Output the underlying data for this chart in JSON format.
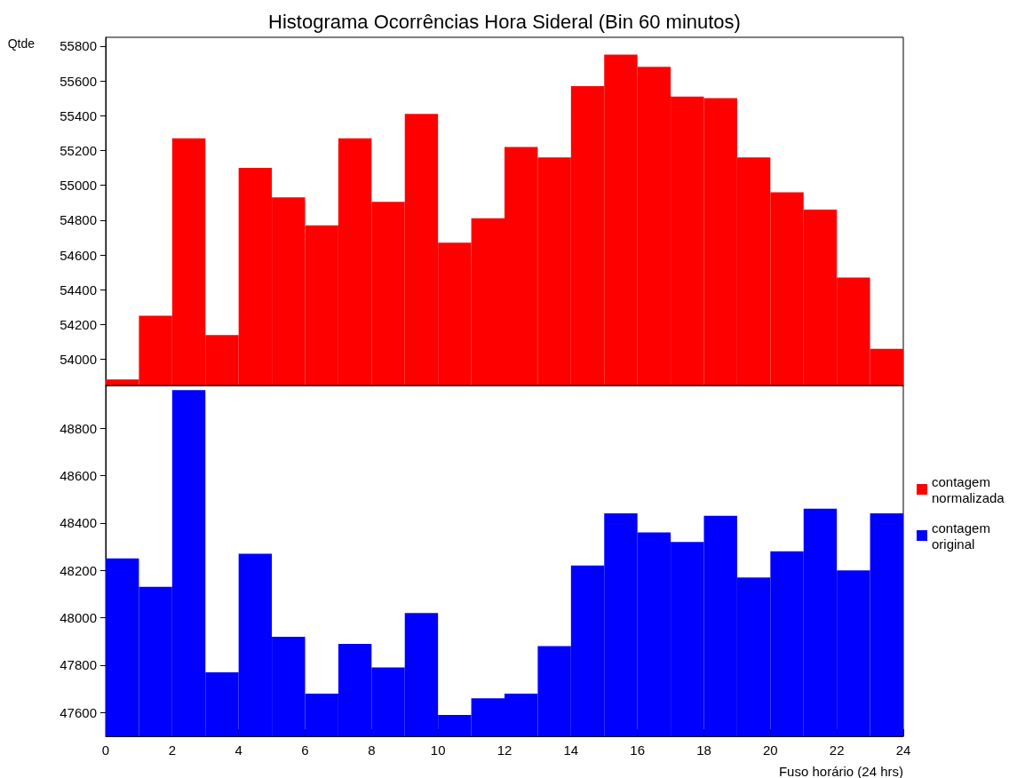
{
  "chart_data": [
    {
      "type": "histogram",
      "title": "Histograma Ocorrências Hora Sideral (Bin 60 minutos)",
      "ylabel": "Qtde",
      "bins": [
        0,
        1,
        2,
        3,
        4,
        5,
        6,
        7,
        8,
        9,
        10,
        11,
        12,
        13,
        14,
        15,
        16,
        17,
        18,
        19,
        20,
        21,
        22,
        23,
        24
      ],
      "series": [
        {
          "name": "contagem normalizada",
          "color": "#ff0000",
          "values": [
            53885,
            54250,
            55270,
            54140,
            55100,
            54930,
            54770,
            55270,
            54905,
            55410,
            54670,
            54810,
            55220,
            55160,
            55570,
            55750,
            55680,
            55510,
            55500,
            55160,
            54960,
            54860,
            54470,
            54060
          ]
        }
      ],
      "xlim": [
        0,
        24
      ],
      "ylim": [
        53850,
        55850
      ],
      "yticks": [
        54000,
        54200,
        54400,
        54600,
        54800,
        55000,
        55200,
        55400,
        55600,
        55800
      ],
      "tick_labels": "y",
      "legend": "right"
    },
    {
      "type": "histogram",
      "xlabel": "Fuso horário (24 hrs)",
      "bins": [
        0,
        1,
        2,
        3,
        4,
        5,
        6,
        7,
        8,
        9,
        10,
        11,
        12,
        13,
        14,
        15,
        16,
        17,
        18,
        19,
        20,
        21,
        22,
        23,
        24
      ],
      "series": [
        {
          "name": "contagem original",
          "color": "#0000ff",
          "values": [
            48250,
            48130,
            48960,
            47770,
            48270,
            47920,
            47680,
            47890,
            47790,
            48020,
            47590,
            47660,
            47680,
            47880,
            48220,
            48440,
            48360,
            48320,
            48430,
            48170,
            48280,
            48460,
            48200,
            48440
          ]
        }
      ],
      "xlim": [
        0,
        24
      ],
      "xticks": [
        0,
        2,
        4,
        6,
        8,
        10,
        12,
        14,
        16,
        18,
        20,
        22,
        24
      ],
      "ylim": [
        47500,
        48980
      ],
      "yticks": [
        47600,
        47800,
        48000,
        48200,
        48400,
        48600,
        48800
      ],
      "legend": "right"
    }
  ]
}
